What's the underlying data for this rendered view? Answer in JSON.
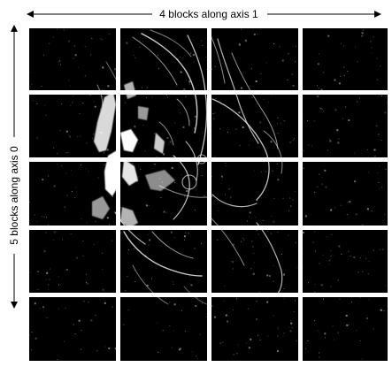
{
  "diagram": {
    "axis1_label": "4 blocks along axis 1",
    "axis0_label": "5 blocks along axis 0",
    "rows": 5,
    "cols": 4,
    "colors": {
      "tile_background": "#000000",
      "separator": "#ffffff",
      "arrow": "#000000",
      "image_feature": "#ffffff"
    },
    "blocks": [
      {
        "row": 0,
        "col": 0,
        "content": "dark-noise"
      },
      {
        "row": 0,
        "col": 1,
        "content": "edge-strokes"
      },
      {
        "row": 0,
        "col": 2,
        "content": "edge-strokes"
      },
      {
        "row": 0,
        "col": 3,
        "content": "dark-noise"
      },
      {
        "row": 1,
        "col": 0,
        "content": "partial-subject"
      },
      {
        "row": 1,
        "col": 1,
        "content": "subject"
      },
      {
        "row": 1,
        "col": 2,
        "content": "edge-strokes"
      },
      {
        "row": 1,
        "col": 3,
        "content": "dark-noise"
      },
      {
        "row": 2,
        "col": 0,
        "content": "partial-subject"
      },
      {
        "row": 2,
        "col": 1,
        "content": "subject"
      },
      {
        "row": 2,
        "col": 2,
        "content": "edge-strokes"
      },
      {
        "row": 2,
        "col": 3,
        "content": "dark-noise"
      },
      {
        "row": 3,
        "col": 0,
        "content": "dark-noise"
      },
      {
        "row": 3,
        "col": 1,
        "content": "edge-strokes"
      },
      {
        "row": 3,
        "col": 2,
        "content": "edge-strokes"
      },
      {
        "row": 3,
        "col": 3,
        "content": "dark-noise"
      },
      {
        "row": 4,
        "col": 0,
        "content": "dark-noise"
      },
      {
        "row": 4,
        "col": 1,
        "content": "dark-noise"
      },
      {
        "row": 4,
        "col": 2,
        "content": "dark-noise"
      },
      {
        "row": 4,
        "col": 3,
        "content": "dark-noise"
      }
    ]
  }
}
